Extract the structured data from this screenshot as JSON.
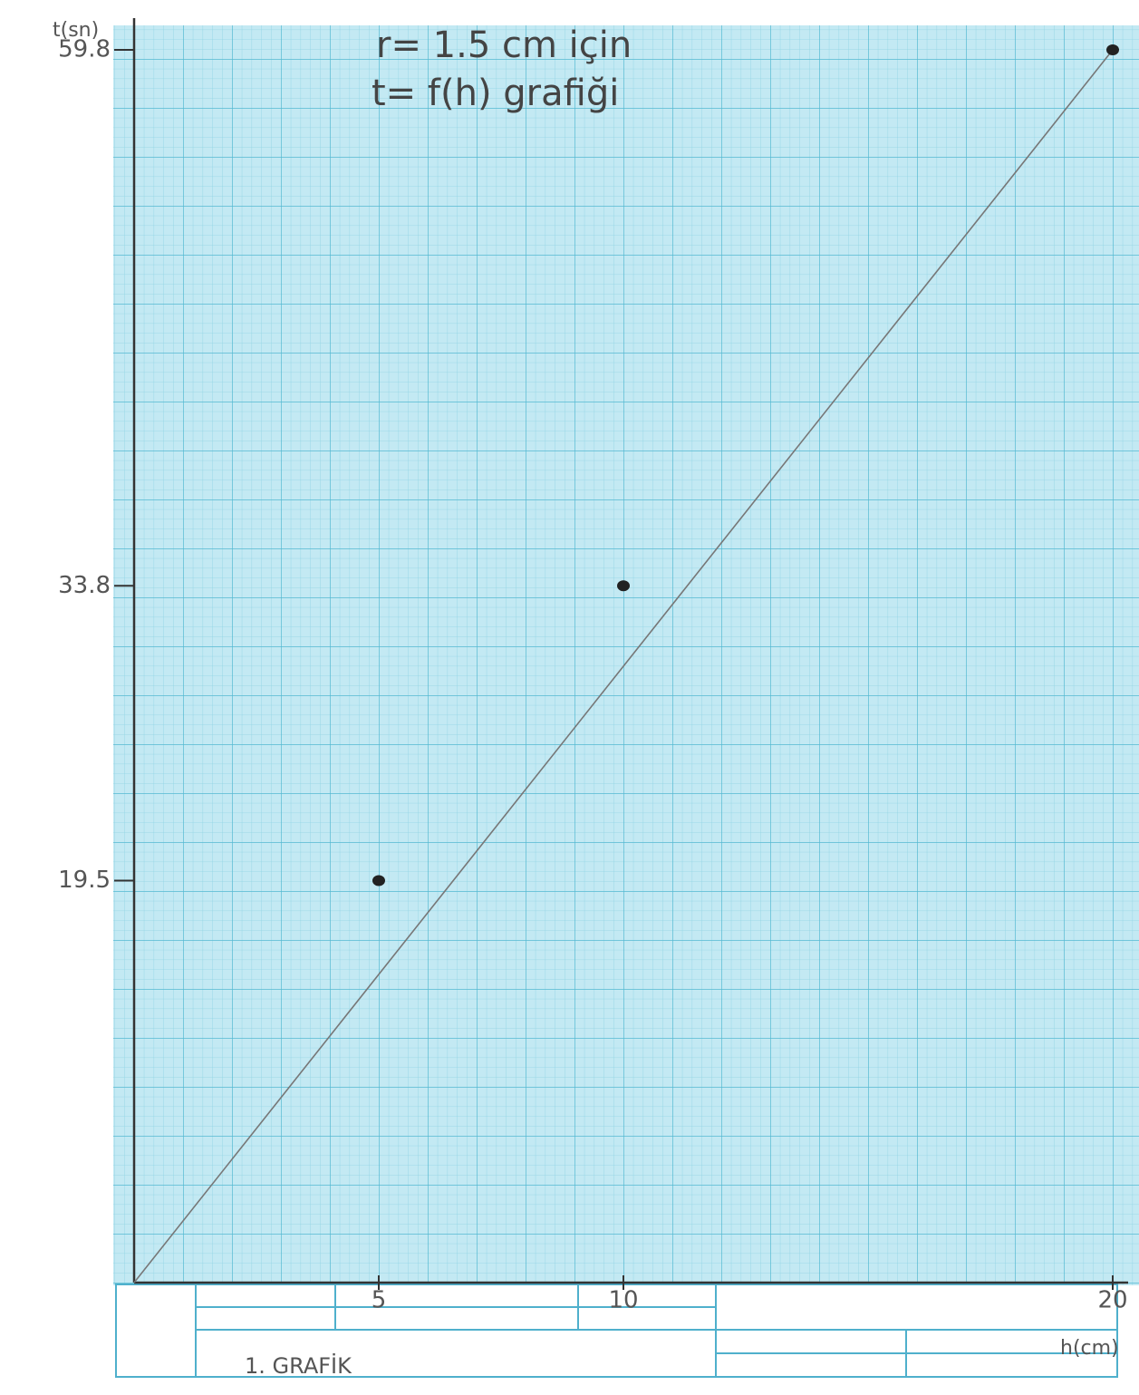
{
  "chart_data": {
    "type": "scatter",
    "title": "r= 1.5 cm için",
    "subtitle": "t= f(h) grafiği",
    "footer": "1. GRAFİK",
    "x_label": "h(cm)",
    "y_label": "t(sn)",
    "x": [
      5,
      10,
      20
    ],
    "values": [
      19.5,
      33.8,
      59.8
    ],
    "color": "#222222",
    "trend_line": {
      "x": [
        0,
        20
      ],
      "values": [
        0,
        59.8
      ],
      "color": "#777777"
    },
    "xlim": [
      0,
      20
    ],
    "ylim": [
      0,
      59.8
    ],
    "xticks": [
      5,
      10,
      20
    ],
    "yticks": [
      19.5,
      33.8,
      59.8
    ]
  }
}
